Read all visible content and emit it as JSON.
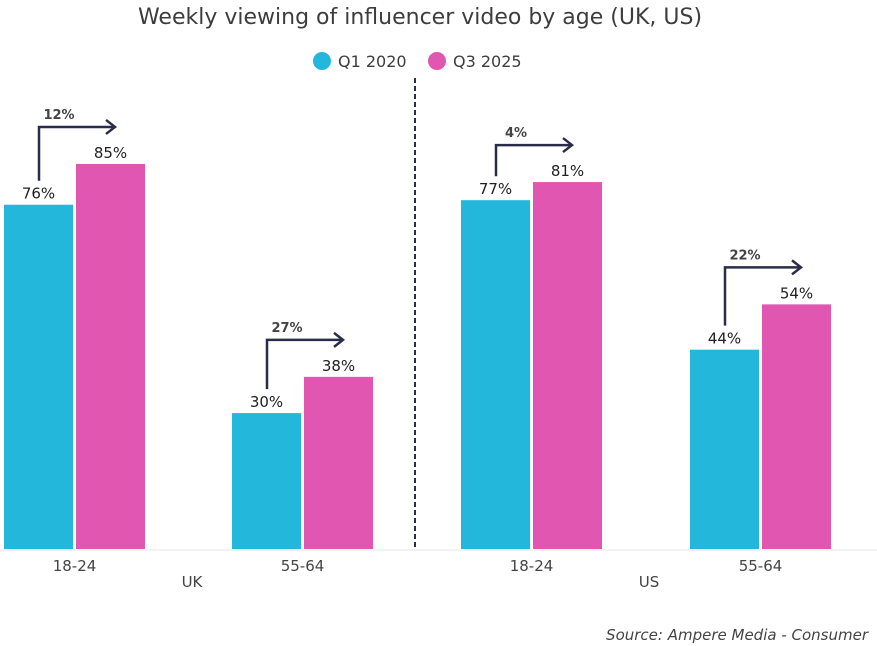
{
  "chart_data": {
    "type": "bar",
    "title": "Weekly viewing of influencer video by age (UK, US)",
    "legend": {
      "placement": "top-center",
      "entries": [
        {
          "name": "Q1 2020",
          "color": "#23b7dc"
        },
        {
          "name": "Q3 2025",
          "color": "#e056b0"
        }
      ]
    },
    "groups": [
      {
        "name": "UK",
        "categories": [
          "18-24",
          "55-64"
        ]
      },
      {
        "name": "US",
        "categories": [
          "18-24",
          "55-64"
        ]
      }
    ],
    "categories": [
      "UK 18-24",
      "UK 55-64",
      "US 18-24",
      "US 55-64"
    ],
    "tick_labels": [
      "18-24",
      "55-64",
      "18-24",
      "55-64"
    ],
    "series": [
      {
        "name": "Q1 2020",
        "color": "#23b7dc",
        "values": [
          76,
          30,
          77,
          44
        ],
        "labels": [
          "76%",
          "30%",
          "77%",
          "44%"
        ]
      },
      {
        "name": "Q3 2025",
        "color": "#e056b0",
        "values": [
          85,
          38,
          81,
          54
        ],
        "labels": [
          "85%",
          "38%",
          "81%",
          "54%"
        ]
      }
    ],
    "changes": [
      "12%",
      "27%",
      "4%",
      "22%"
    ],
    "ylim": [
      0,
      100
    ],
    "grid": false,
    "xlabel": "",
    "ylabel": "",
    "source": "Source: Ampere Media - Consumer",
    "arrow_color": "#2a2d4a",
    "divider_color": "#2a2d4a"
  }
}
